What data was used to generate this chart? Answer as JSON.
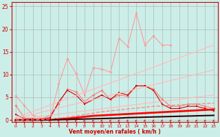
{
  "bg_color": "#cceee8",
  "grid_color": "#aaaaaa",
  "xlabel": "Vent moyen/en rafales ( km/h )",
  "xlabel_color": "#cc0000",
  "tick_color": "#cc0000",
  "xlim": [
    -0.5,
    23.5
  ],
  "ylim": [
    -0.5,
    26
  ],
  "yticks": [
    0,
    5,
    10,
    15,
    20,
    25
  ],
  "xticks": [
    0,
    1,
    2,
    3,
    4,
    5,
    6,
    7,
    8,
    9,
    10,
    11,
    12,
    13,
    14,
    15,
    16,
    17,
    18,
    19,
    20,
    21,
    22,
    23
  ],
  "series": [
    {
      "x": [
        0,
        1,
        2,
        3,
        4,
        5,
        6,
        7,
        8,
        9,
        10,
        11,
        12,
        13,
        14,
        15,
        16,
        17,
        18
      ],
      "y": [
        5.3,
        3.2,
        1.0,
        0.4,
        0.4,
        8.0,
        13.5,
        10.2,
        5.5,
        11.5,
        11.2,
        10.5,
        18.0,
        16.2,
        23.5,
        16.5,
        18.5,
        16.5,
        16.5
      ],
      "color": "#ff9999",
      "lw": 0.8,
      "marker": "D",
      "ms": 2.0,
      "ls": "-"
    },
    {
      "x": [
        0,
        1,
        2,
        3,
        4,
        5,
        6,
        7,
        8,
        9,
        10,
        11,
        12,
        13,
        14,
        15,
        16,
        17,
        18,
        19,
        20,
        21,
        22,
        23
      ],
      "y": [
        3.2,
        0.5,
        0.3,
        0.2,
        1.0,
        3.5,
        6.8,
        6.2,
        4.0,
        5.5,
        6.5,
        4.5,
        5.5,
        5.2,
        7.5,
        7.5,
        6.8,
        4.5,
        3.0,
        3.0,
        3.5,
        3.5,
        3.0,
        2.5
      ],
      "color": "#ff7777",
      "lw": 0.8,
      "marker": "D",
      "ms": 2.0,
      "ls": "-"
    },
    {
      "x": [
        0,
        1,
        2,
        3,
        4,
        5,
        6,
        7,
        8,
        9,
        10,
        11,
        12,
        13,
        14,
        15,
        16,
        17,
        18,
        19,
        20,
        21,
        22,
        23
      ],
      "y": [
        1.2,
        0.3,
        0.1,
        0.1,
        0.5,
        4.0,
        6.5,
        5.5,
        3.5,
        4.5,
        5.5,
        4.5,
        6.0,
        5.5,
        7.5,
        7.5,
        6.5,
        3.5,
        2.5,
        2.5,
        3.0,
        3.0,
        2.5,
        2.0
      ],
      "color": "#cc0000",
      "lw": 0.8,
      "marker": "s",
      "ms": 2.0,
      "ls": "-"
    },
    {
      "x": [
        0,
        23
      ],
      "y": [
        0.5,
        16.5
      ],
      "color": "#ffbbbb",
      "lw": 0.9,
      "marker": null,
      "ms": 0,
      "ls": "-"
    },
    {
      "x": [
        0,
        23
      ],
      "y": [
        0.3,
        11.0
      ],
      "color": "#ffbbbb",
      "lw": 0.9,
      "marker": null,
      "ms": 0,
      "ls": "-"
    },
    {
      "x": [
        0,
        23
      ],
      "y": [
        0.1,
        5.5
      ],
      "color": "#ffbbbb",
      "lw": 0.9,
      "marker": null,
      "ms": 0,
      "ls": "-"
    },
    {
      "x": [
        0,
        1,
        2,
        3,
        4,
        5,
        6,
        7,
        8,
        9,
        10,
        11,
        12,
        13,
        14,
        15,
        16,
        17,
        18,
        19,
        20,
        21,
        22,
        23
      ],
      "y": [
        0.0,
        0.0,
        0.0,
        0.05,
        0.1,
        0.2,
        0.3,
        0.5,
        0.7,
        0.9,
        1.0,
        1.1,
        1.2,
        1.3,
        1.4,
        1.5,
        1.6,
        1.7,
        1.8,
        1.9,
        2.0,
        2.1,
        2.2,
        2.3
      ],
      "color": "#ff0000",
      "lw": 2.0,
      "marker": null,
      "ms": 0,
      "ls": "-"
    },
    {
      "x": [
        0,
        1,
        2,
        3,
        4,
        5,
        6,
        7,
        8,
        9,
        10,
        11,
        12,
        13,
        14,
        15,
        16,
        17,
        18,
        19,
        20,
        21,
        22,
        23
      ],
      "y": [
        0.0,
        0.0,
        0.0,
        0.0,
        0.0,
        0.05,
        0.1,
        0.15,
        0.2,
        0.25,
        0.3,
        0.35,
        0.4,
        0.5,
        0.55,
        0.6,
        0.65,
        0.7,
        0.75,
        0.8,
        0.85,
        0.9,
        0.95,
        1.0
      ],
      "color": "#330000",
      "lw": 1.5,
      "marker": null,
      "ms": 0,
      "ls": "-"
    },
    {
      "x": [
        0,
        1,
        2,
        3,
        4,
        5,
        6,
        7,
        8,
        9,
        10,
        11,
        12,
        13,
        14,
        15,
        16,
        17,
        18,
        19,
        20,
        21,
        22,
        23
      ],
      "y": [
        0.0,
        0.0,
        0.0,
        0.1,
        0.2,
        0.4,
        0.6,
        0.9,
        1.2,
        1.5,
        1.8,
        2.0,
        2.2,
        2.4,
        2.6,
        2.8,
        3.0,
        3.1,
        3.2,
        3.3,
        3.4,
        3.5,
        3.6,
        3.7
      ],
      "color": "#ff8888",
      "lw": 1.0,
      "marker": null,
      "ms": 0,
      "ls": "--"
    }
  ],
  "arrow_color": "#cc0000",
  "wind_arrows_x": [
    0,
    1,
    2,
    3,
    4,
    5,
    6,
    7,
    8,
    9,
    10,
    11,
    12,
    13,
    14,
    15,
    16,
    17,
    18,
    19,
    20,
    21,
    22,
    23
  ]
}
